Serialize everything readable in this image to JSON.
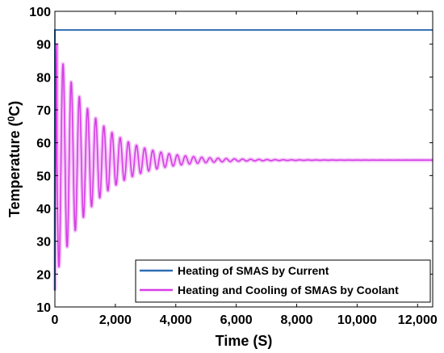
{
  "chart_data": {
    "type": "line",
    "xlabel": "Time (S)",
    "ylabel_main": "Temperature (",
    "ylabel_sup": "0",
    "ylabel_tail": "C)",
    "xlim": [
      0,
      12500
    ],
    "ylim": [
      10,
      100
    ],
    "x_ticks": [
      0,
      2000,
      4000,
      6000,
      8000,
      10000,
      12000
    ],
    "x_tick_labels": [
      "0",
      "2,000",
      "4,000",
      "6,000",
      "8,000",
      "10,000",
      "12,000"
    ],
    "y_ticks": [
      10,
      20,
      30,
      40,
      50,
      60,
      70,
      80,
      90,
      100
    ],
    "y_tick_labels": [
      "10",
      "20",
      "30",
      "40",
      "50",
      "60",
      "70",
      "80",
      "90",
      "100"
    ],
    "legend_position": "bottom-right",
    "series": [
      {
        "name": "Heating of SMAS by Current",
        "color": "#2e6db4",
        "kind": "step",
        "start_value": 15,
        "steady_value": 94.3
      },
      {
        "name": "Heating and Cooling of SMAS by Coolant",
        "color": "#d63ee6",
        "kind": "damped_oscillation",
        "start_value": 15,
        "steady_value": 54.7,
        "initial_amplitude": 36,
        "period": 270,
        "decay_time": 1300
      }
    ]
  }
}
